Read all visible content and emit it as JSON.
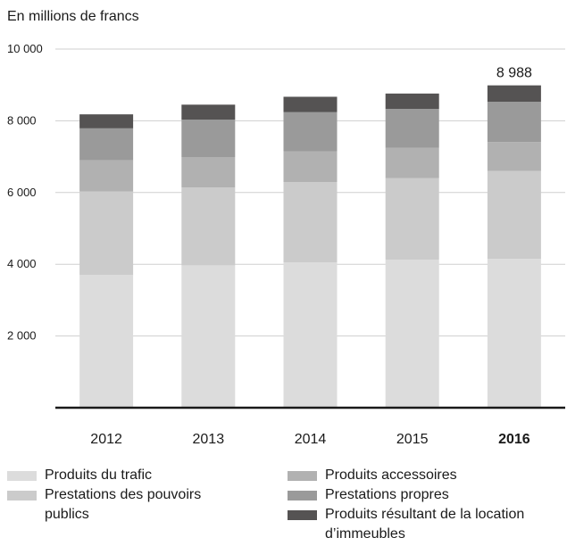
{
  "chart_data": {
    "type": "bar",
    "stacked": true,
    "unit_label": "En millions de francs",
    "categories": [
      "2012",
      "2013",
      "2014",
      "2015",
      "2016"
    ],
    "highlight_category": "2016",
    "ylim": [
      0,
      10000
    ],
    "yticks": [
      2000,
      4000,
      6000,
      8000,
      10000
    ],
    "ytick_labels": [
      "2 000",
      "4 000",
      "6 000",
      "8 000",
      "10 000"
    ],
    "grid": true,
    "legend_placement": "bottom",
    "series": [
      {
        "name": "Produits du trafic",
        "color": "#dcdcdc",
        "values": [
          3700,
          3970,
          4050,
          4130,
          4150
        ]
      },
      {
        "name": "Prestations des pouvoirs publics",
        "color": "#cbcbcb",
        "values": [
          2330,
          2170,
          2240,
          2270,
          2450
        ]
      },
      {
        "name": "Produits accessoires",
        "color": "#b1b1b1",
        "values": [
          870,
          850,
          860,
          850,
          810
        ]
      },
      {
        "name": "Prestations propres",
        "color": "#9a9a9a",
        "values": [
          890,
          1040,
          1090,
          1080,
          1120
        ]
      },
      {
        "name": "Produits résultant de la location d’immeubles",
        "color": "#555353",
        "values": [
          390,
          420,
          430,
          430,
          458
        ]
      }
    ],
    "data_labels": [
      {
        "category": "2016",
        "text": "8 988"
      }
    ]
  },
  "legend": {
    "columns": [
      [
        {
          "label": "Produits du trafic",
          "color": "#dcdcdc"
        },
        {
          "label": "Prestations des pouvoirs publics",
          "color": "#cbcbcb"
        }
      ],
      [
        {
          "label": "Produits accessoires",
          "color": "#b1b1b1"
        },
        {
          "label": "Prestations propres",
          "color": "#9a9a9a"
        },
        {
          "label": "Produits résultant de la location d’immeubles",
          "color": "#555353"
        }
      ]
    ]
  }
}
